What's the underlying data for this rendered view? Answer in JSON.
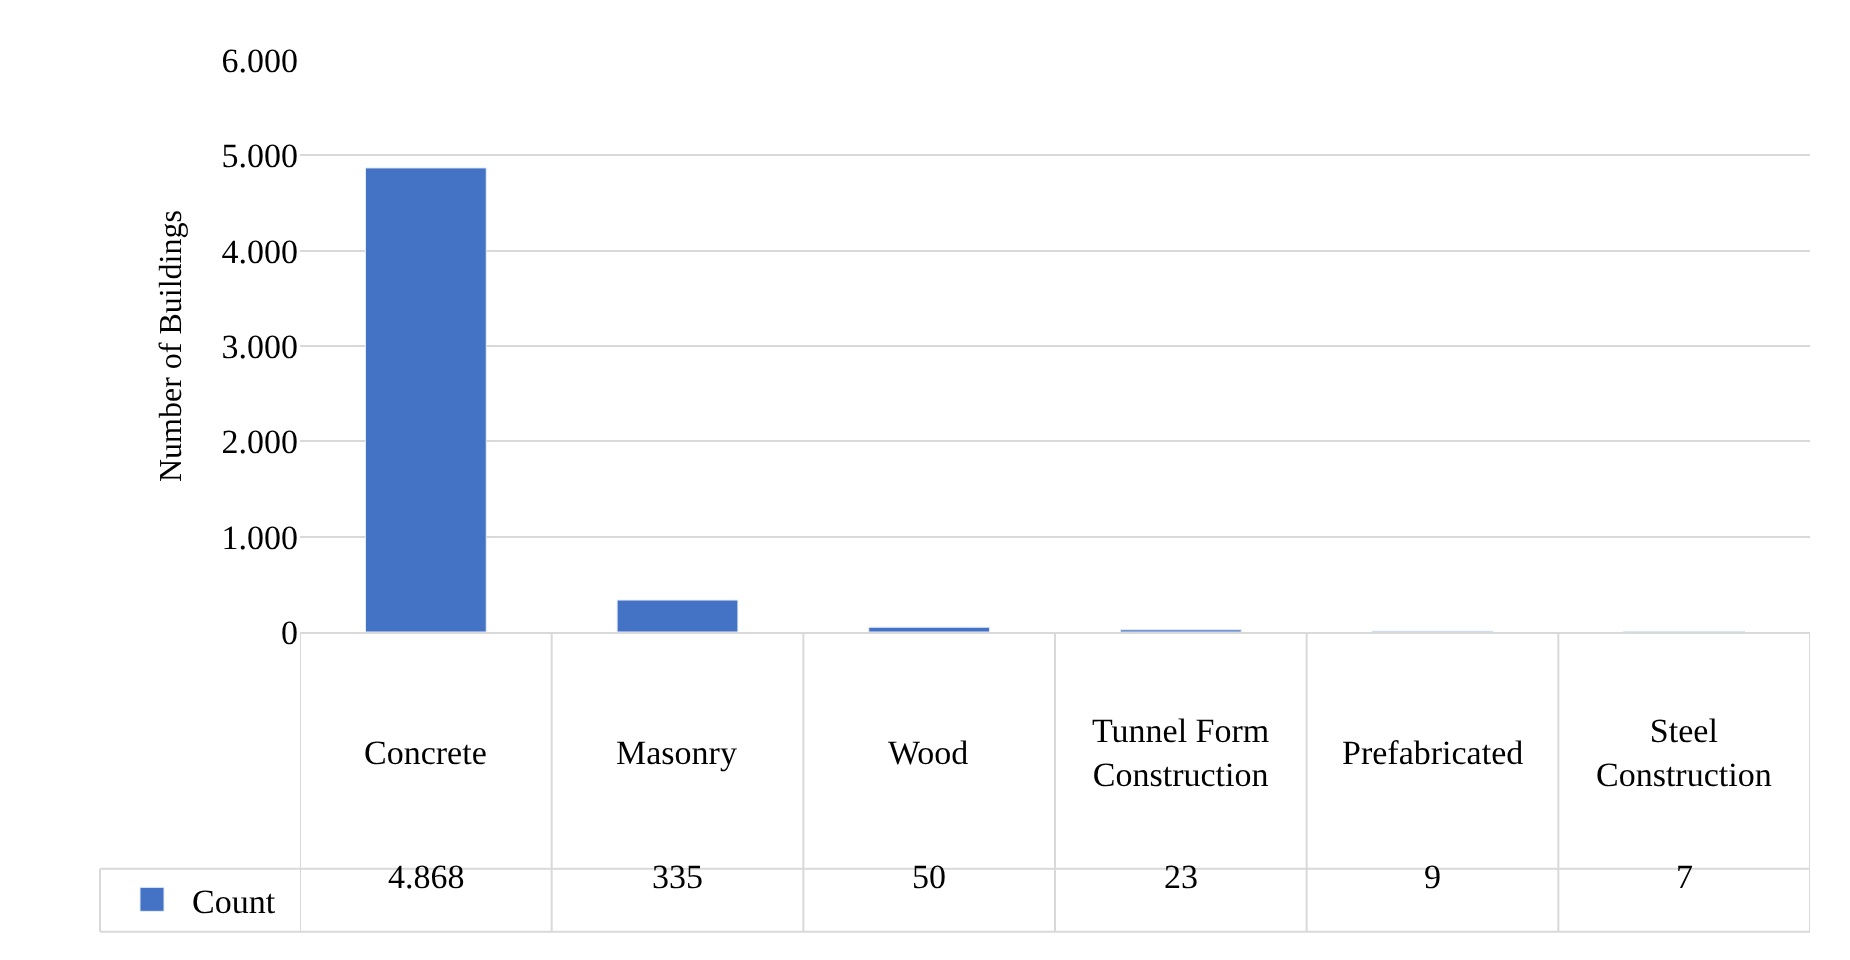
{
  "chart_data": {
    "type": "bar",
    "ylabel": "Number of Buildings",
    "categories": [
      "Concrete",
      "Masonry",
      "Wood",
      "Tunnel Form Construction",
      "Prefabricated",
      "Steel Construction"
    ],
    "series": [
      {
        "name": "Count",
        "color": "#4472c4",
        "values": [
          4868,
          335,
          50,
          23,
          9,
          7
        ],
        "value_labels": [
          "4.868",
          "335",
          "50",
          "23",
          "9",
          "7"
        ]
      }
    ],
    "ylim": [
      0,
      6000
    ],
    "yticks": [
      {
        "value": 0,
        "label": "0"
      },
      {
        "value": 1000,
        "label": "1.000"
      },
      {
        "value": 2000,
        "label": "2.000"
      },
      {
        "value": 3000,
        "label": "3.000"
      },
      {
        "value": 4000,
        "label": "4.000"
      },
      {
        "value": 5000,
        "label": "5.000"
      },
      {
        "value": 6000,
        "label": "6.000"
      }
    ],
    "grid": "y",
    "legend": "bottom left"
  }
}
